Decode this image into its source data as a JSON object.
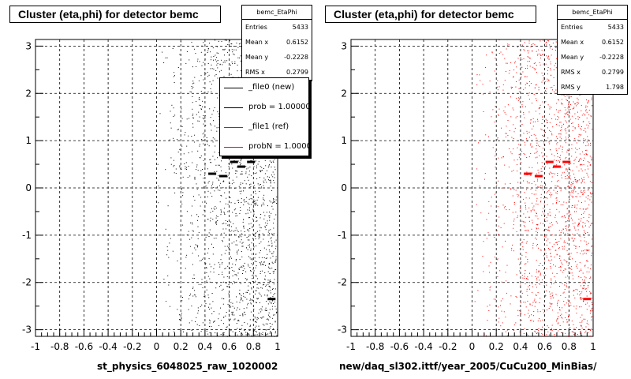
{
  "chart_data": [
    {
      "type": "scatter",
      "title": "Cluster (eta,phi) for detector bemc",
      "xlabel": "st_physics_6048025_raw_1020002",
      "ylabel": "",
      "xlim": [
        -1,
        1
      ],
      "ylim": [
        -3.14,
        3.14
      ],
      "grid": true,
      "marker_color": "#000000",
      "xticks": [
        "-1",
        "-0.8",
        "-0.6",
        "-0.4",
        "-0.2",
        "0",
        "0.2",
        "0.4",
        "0.6",
        "0.8",
        "1"
      ],
      "yticks": [
        "-3",
        "-2",
        "-1",
        "0",
        "1",
        "2",
        "3"
      ],
      "stats": {
        "name": "bemc_EtaPhi",
        "rows": [
          {
            "k": "Entries",
            "v": "5433"
          },
          {
            "k": "Mean x",
            "v": "0.6152"
          },
          {
            "k": "Mean y",
            "v": "-0.2228"
          },
          {
            "k": "RMS x",
            "v": "0.2799"
          }
        ]
      },
      "legend": [
        {
          "label": "_file0 (new)",
          "color": "#000000"
        },
        {
          "label": "prob = 1.000000",
          "color": "#000000"
        },
        {
          "label": "_file1 (ref)",
          "color": "#ff0000"
        },
        {
          "label": "probN = 1.000000",
          "color": "#ff0000"
        }
      ],
      "clusters": [
        {
          "x": 0.46,
          "y": 0.3
        },
        {
          "x": 0.55,
          "y": 0.25
        },
        {
          "x": 0.64,
          "y": 0.55
        },
        {
          "x": 0.7,
          "y": 0.45
        },
        {
          "x": 0.78,
          "y": 0.55
        },
        {
          "x": 0.95,
          "y": -2.35
        }
      ]
    },
    {
      "type": "scatter",
      "title": "Cluster (eta,phi) for detector bemc",
      "xlabel": "new/daq_sl302.ittf/year_2005/CuCu200_MinBias/",
      "ylabel": "",
      "xlim": [
        -1,
        1
      ],
      "ylim": [
        -3.14,
        3.14
      ],
      "grid": true,
      "marker_color": "#ff0000",
      "xticks": [
        "-1",
        "-0.8",
        "-0.6",
        "-0.4",
        "-0.2",
        "0",
        "0.2",
        "0.4",
        "0.6",
        "0.8",
        "1"
      ],
      "yticks": [
        "-3",
        "-2",
        "-1",
        "0",
        "1",
        "2",
        "3"
      ],
      "stats": {
        "name": "bemc_EtaPhi",
        "rows": [
          {
            "k": "Entries",
            "v": "5433"
          },
          {
            "k": "Mean x",
            "v": "0.6152"
          },
          {
            "k": "Mean y",
            "v": "-0.2228"
          },
          {
            "k": "RMS x",
            "v": "0.2799"
          },
          {
            "k": "RMS y",
            "v": "1.798"
          }
        ]
      },
      "clusters": [
        {
          "x": 0.46,
          "y": 0.3
        },
        {
          "x": 0.55,
          "y": 0.25
        },
        {
          "x": 0.64,
          "y": 0.55
        },
        {
          "x": 0.7,
          "y": 0.45
        },
        {
          "x": 0.78,
          "y": 0.55
        },
        {
          "x": 0.95,
          "y": -2.35
        }
      ]
    }
  ]
}
